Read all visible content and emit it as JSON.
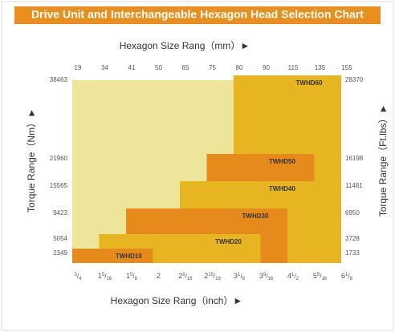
{
  "title": "Drive Unit and Interchangeable Hexagon Head Selection Chart",
  "top_axis": {
    "label": "Hexagon Size Rang（mm）►",
    "ticks": [
      19,
      34,
      41,
      50,
      65,
      75,
      80,
      90,
      115,
      135,
      155
    ]
  },
  "bottom_axis": {
    "label": "Hexagon Size Rang（inch）►",
    "ticks": [
      {
        "whole": "",
        "num": "3",
        "den": "4"
      },
      {
        "whole": "1",
        "num": "5",
        "den": "16"
      },
      {
        "whole": "1",
        "num": "5",
        "den": "8"
      },
      {
        "whole": "2",
        "num": "",
        "den": ""
      },
      {
        "whole": "2",
        "num": "9",
        "den": "16"
      },
      {
        "whole": "2",
        "num": "15",
        "den": "16"
      },
      {
        "whole": "3",
        "num": "1",
        "den": "8"
      },
      {
        "whole": "3",
        "num": "9",
        "den": "16"
      },
      {
        "whole": "4",
        "num": "1",
        "den": "2"
      },
      {
        "whole": "5",
        "num": "5",
        "den": "16"
      },
      {
        "whole": "6",
        "num": "1",
        "den": "8"
      }
    ]
  },
  "left_axis": {
    "label": "Torque Range（Nm）►",
    "ticks": [
      38463,
      21960,
      15565,
      9423,
      5054,
      2349
    ]
  },
  "right_axis": {
    "label": "Torque Range（Ft.lbs）►",
    "ticks": [
      28370,
      16198,
      11481,
      6950,
      3728,
      1733
    ]
  },
  "regions": [
    {
      "label": "TWHD60",
      "mm": [
        80,
        155
      ],
      "nm": 38463,
      "ftlbs": 28370,
      "color": "#e6b521"
    },
    {
      "label": "TWHD50",
      "mm": [
        75,
        135
      ],
      "nm": 21960,
      "ftlbs": 16198,
      "color": "#e68a1c"
    },
    {
      "label": "TWHD40",
      "mm": [
        65,
        135
      ],
      "nm": 15565,
      "ftlbs": 11481,
      "color": "#e6b521"
    },
    {
      "label": "TWHD30",
      "mm": [
        41,
        115
      ],
      "nm": 9423,
      "ftlbs": 6950,
      "color": "#e68a1c"
    },
    {
      "label": "TWHD20",
      "mm": [
        34,
        90
      ],
      "nm": 5054,
      "ftlbs": 3728,
      "color": "#e6b521"
    },
    {
      "label": "TWHD10",
      "mm": [
        19,
        50
      ],
      "nm": 2349,
      "ftlbs": 1733,
      "color": "#e68a1c"
    }
  ]
}
